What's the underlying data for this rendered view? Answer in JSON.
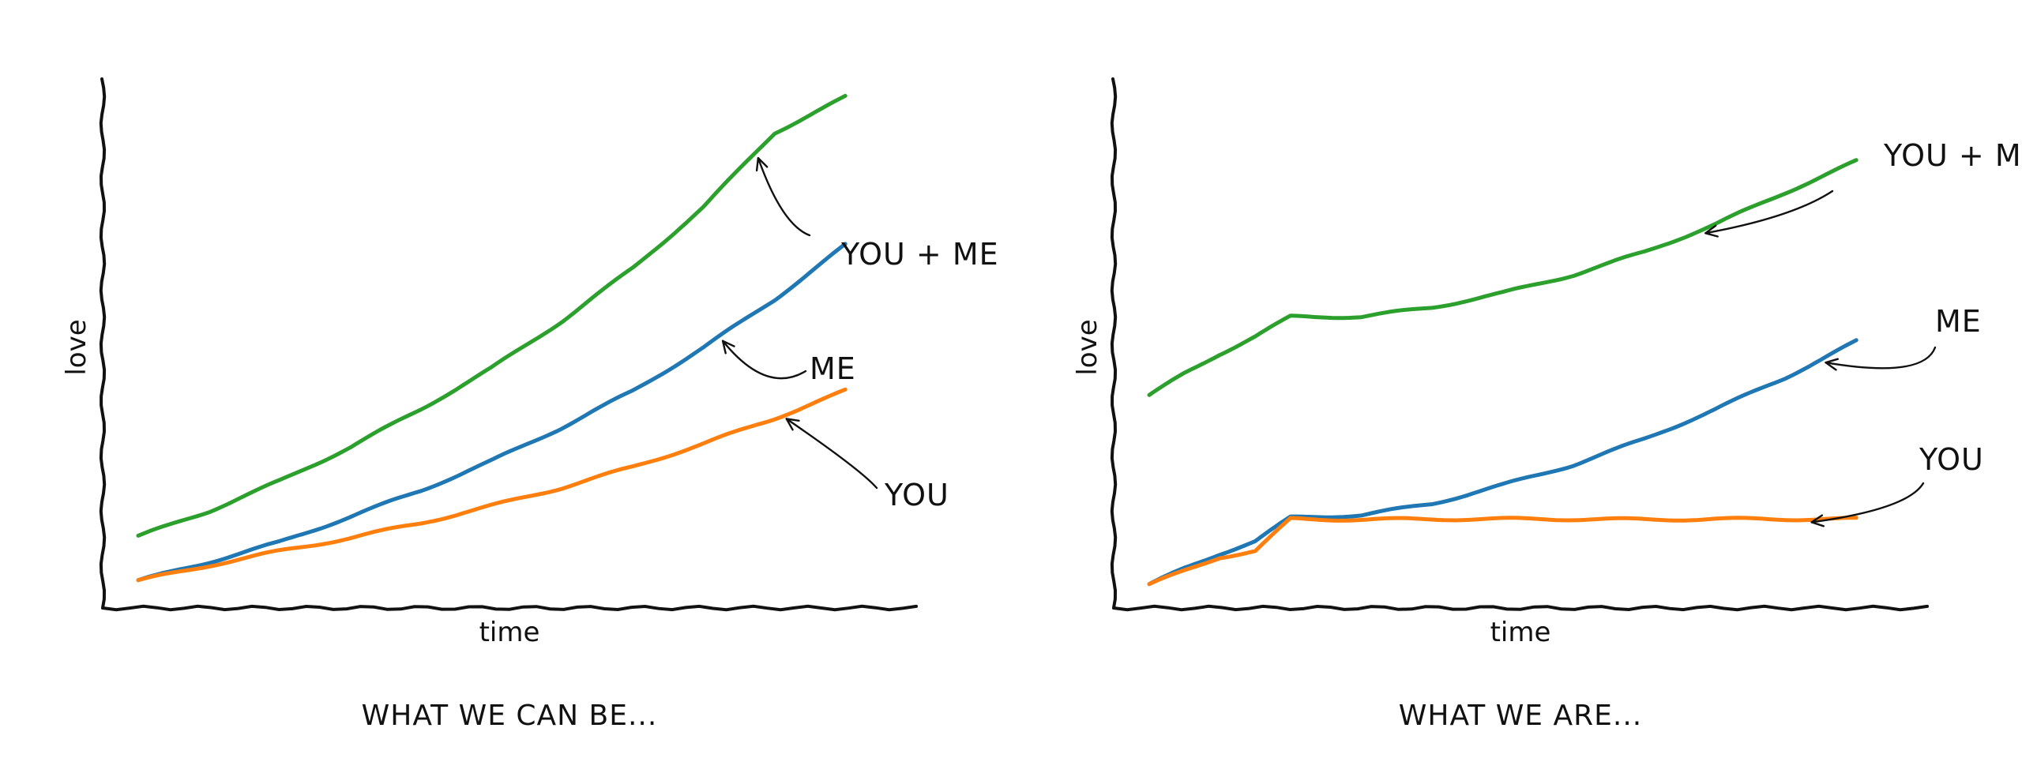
{
  "figure": {
    "background": "#ffffff",
    "colors": {
      "blue": "#1f77b4",
      "orange": "#ff7f0e",
      "green": "#2ca02c",
      "ink": "#111111"
    },
    "style": "xkcd"
  },
  "chart_data": [
    {
      "type": "line",
      "title": "WHAT WE CAN BE...",
      "xlabel": "time",
      "ylabel": "love",
      "xlim": [
        0,
        10.5
      ],
      "ylim": [
        0,
        1
      ],
      "grid": false,
      "x": [
        0,
        1,
        2,
        3,
        4,
        5,
        6,
        7,
        8,
        9,
        10
      ],
      "series": [
        {
          "name": "ME",
          "color": "#1f77b4",
          "values": [
            0.02,
            0.058,
            0.098,
            0.15,
            0.203,
            0.263,
            0.331,
            0.405,
            0.493,
            0.59,
            0.7
          ]
        },
        {
          "name": "YOU",
          "color": "#ff7f0e",
          "values": [
            0.02,
            0.051,
            0.08,
            0.107,
            0.137,
            0.172,
            0.209,
            0.251,
            0.298,
            0.349,
            0.405
          ]
        },
        {
          "name": "YOU + ME",
          "color": "#2ca02c",
          "values": [
            0.11,
            0.161,
            0.222,
            0.291,
            0.368,
            0.451,
            0.547,
            0.654,
            0.778,
            0.928,
            1.0
          ]
        }
      ],
      "annotations": [
        {
          "text": "YOU + ME",
          "series": "YOU + ME",
          "x": 8.7
        },
        {
          "text": "ME",
          "series": "ME",
          "x": 8.2
        },
        {
          "text": "YOU",
          "series": "YOU",
          "x": 9.1
        }
      ]
    },
    {
      "type": "line",
      "title": "WHAT WE ARE...",
      "xlabel": "time",
      "ylabel": "love",
      "xlim": [
        0,
        10.5
      ],
      "ylim": [
        0,
        1
      ],
      "grid": false,
      "x": [
        0,
        0.5,
        1,
        1.5,
        2,
        3,
        4,
        5,
        6,
        7,
        8,
        9,
        10
      ],
      "series": [
        {
          "name": "ME",
          "color": "#1f77b4",
          "values": [
            0.012,
            0.045,
            0.075,
            0.1,
            0.148,
            0.153,
            0.176,
            0.214,
            0.255,
            0.307,
            0.367,
            0.432,
            0.505
          ]
        },
        {
          "name": "YOU",
          "color": "#ff7f0e",
          "values": [
            0.012,
            0.04,
            0.068,
            0.08,
            0.145,
            0.144,
            0.145,
            0.145,
            0.145,
            0.144,
            0.145,
            0.145,
            0.145
          ]
        },
        {
          "name": "YOU + ME",
          "color": "#2ca02c",
          "values": [
            0.395,
            0.44,
            0.48,
            0.515,
            0.555,
            0.555,
            0.574,
            0.603,
            0.64,
            0.686,
            0.742,
            0.807,
            0.87
          ]
        }
      ],
      "annotations": [
        {
          "text": "YOU + ME",
          "series": "YOU + ME",
          "x": 7.8
        },
        {
          "text": "ME",
          "series": "ME",
          "x": 9.5
        },
        {
          "text": "YOU",
          "series": "YOU",
          "x": 9.3
        }
      ]
    }
  ]
}
